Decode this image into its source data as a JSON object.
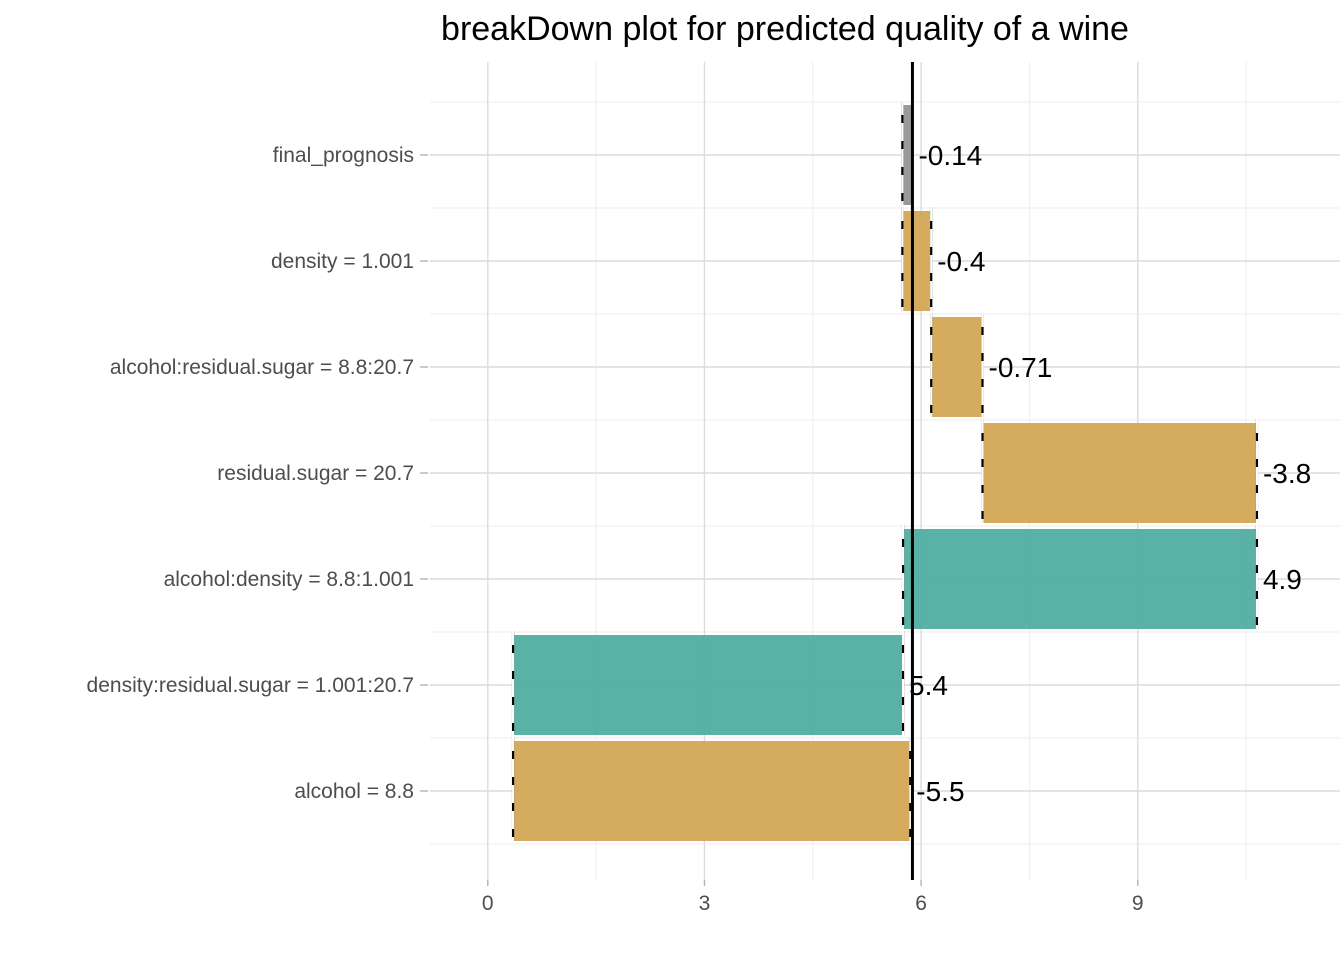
{
  "chart_data": {
    "type": "bar",
    "subtype": "waterfall-breakdown",
    "title": "breakDown plot for predicted quality of a wine",
    "xlabel": "",
    "ylabel": "",
    "xlim": [
      -0.8,
      11.8
    ],
    "x_ticks": [
      0,
      3,
      6,
      9
    ],
    "x_tick_labels": [
      "0",
      "3",
      "6",
      "9"
    ],
    "grid": true,
    "legend": "none",
    "baseline_value": 5.88,
    "reference_line_color": "#000000",
    "colors": {
      "negative": "#d1a54f",
      "positive": "#4caa9d",
      "final": "#999999"
    },
    "categories": [
      "final_prognosis",
      "density = 1.001",
      "alcohol:residual.sugar = 8.8:20.7",
      "residual.sugar = 20.7",
      "alcohol:density = 8.8:1.001",
      "density:residual.sugar = 1.001:20.7",
      "alcohol = 8.8"
    ],
    "bars": [
      {
        "category": "final_prognosis",
        "start": 5.74,
        "end": 5.88,
        "contribution": -0.14,
        "label": "-0.14",
        "kind": "final"
      },
      {
        "category": "density = 1.001",
        "start": 5.74,
        "end": 6.14,
        "contribution": -0.4,
        "label": "-0.4",
        "kind": "negative"
      },
      {
        "category": "alcohol:residual.sugar = 8.8:20.7",
        "start": 6.14,
        "end": 6.85,
        "contribution": -0.71,
        "label": "-0.71",
        "kind": "negative"
      },
      {
        "category": "residual.sugar = 20.7",
        "start": 6.85,
        "end": 10.65,
        "contribution": -3.8,
        "label": "-3.8",
        "kind": "negative"
      },
      {
        "category": "alcohol:density = 8.8:1.001",
        "start": 5.75,
        "end": 10.65,
        "contribution": 4.9,
        "label": "4.9",
        "kind": "positive"
      },
      {
        "category": "density:residual.sugar = 1.001:20.7",
        "start": 0.35,
        "end": 5.75,
        "contribution": 5.4,
        "label": "5.4",
        "kind": "positive"
      },
      {
        "category": "alcohol = 8.8",
        "start": 0.35,
        "end": 5.85,
        "contribution": -5.5,
        "label": "-5.5",
        "kind": "negative"
      }
    ]
  }
}
